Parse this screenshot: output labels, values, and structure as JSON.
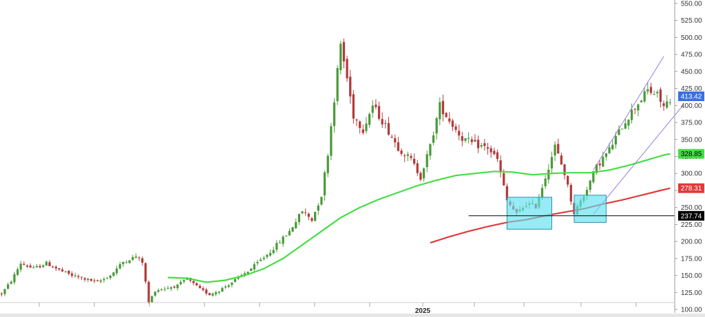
{
  "chart_data": {
    "type": "candlestick",
    "title": "",
    "xlabel": "",
    "ylabel": "",
    "ylim": [
      95,
      555
    ],
    "y_ticks": [
      100.0,
      125.0,
      150.0,
      175.0,
      200.0,
      225.0,
      250.0,
      275.0,
      300.0,
      325.0,
      350.0,
      375.0,
      400.0,
      425.0,
      450.0,
      475.0,
      500.0,
      525.0,
      550.0
    ],
    "x_tick_labels": [
      "2025"
    ],
    "grid": false,
    "colors": {
      "up": "#4a9a3a",
      "down": "#b23a3a",
      "ma_fast": "#44dd44",
      "ma_slow": "#e03a3a",
      "channel": "#9a7ae0",
      "highlight_fill": "#5fe0ee",
      "highlight_stroke": "#2a8fa8",
      "support": "#000000",
      "price_badge": "#3b6fe0"
    },
    "price_waypoints": [
      [
        0,
        123
      ],
      [
        3,
        142
      ],
      [
        6,
        168
      ],
      [
        10,
        160
      ],
      [
        14,
        168
      ],
      [
        18,
        158
      ],
      [
        22,
        150
      ],
      [
        26,
        145
      ],
      [
        30,
        140
      ],
      [
        34,
        150
      ],
      [
        38,
        170
      ],
      [
        42,
        178
      ],
      [
        44,
        170
      ],
      [
        46,
        110
      ],
      [
        48,
        128
      ],
      [
        55,
        135
      ],
      [
        58,
        145
      ],
      [
        62,
        130
      ],
      [
        65,
        122
      ],
      [
        68,
        128
      ],
      [
        72,
        140
      ],
      [
        78,
        160
      ],
      [
        84,
        185
      ],
      [
        90,
        215
      ],
      [
        94,
        245
      ],
      [
        97,
        232
      ],
      [
        100,
        268
      ],
      [
        102,
        330
      ],
      [
        104,
        410
      ],
      [
        106,
        490
      ],
      [
        108,
        440
      ],
      [
        110,
        385
      ],
      [
        113,
        365
      ],
      [
        116,
        400
      ],
      [
        120,
        370
      ],
      [
        124,
        338
      ],
      [
        128,
        320
      ],
      [
        131,
        295
      ],
      [
        134,
        340
      ],
      [
        137,
        400
      ],
      [
        140,
        378
      ],
      [
        144,
        352
      ],
      [
        148,
        342
      ],
      [
        152,
        338
      ],
      [
        155,
        320
      ],
      [
        158,
        260
      ],
      [
        161,
        240
      ],
      [
        164,
        255
      ],
      [
        167,
        252
      ],
      [
        170,
        295
      ],
      [
        173,
        340
      ],
      [
        176,
        300
      ],
      [
        179,
        242
      ],
      [
        182,
        268
      ],
      [
        186,
        310
      ],
      [
        190,
        335
      ],
      [
        194,
        370
      ],
      [
        198,
        398
      ],
      [
        202,
        422
      ],
      [
        205,
        415
      ],
      [
        207,
        398
      ],
      [
        209,
        410
      ]
    ],
    "ma_fast": [
      [
        52,
        147
      ],
      [
        58,
        146
      ],
      [
        64,
        140
      ],
      [
        70,
        143
      ],
      [
        76,
        150
      ],
      [
        82,
        160
      ],
      [
        88,
        175
      ],
      [
        94,
        195
      ],
      [
        100,
        215
      ],
      [
        106,
        235
      ],
      [
        112,
        250
      ],
      [
        118,
        262
      ],
      [
        124,
        272
      ],
      [
        130,
        282
      ],
      [
        136,
        290
      ],
      [
        142,
        297
      ],
      [
        148,
        300
      ],
      [
        154,
        303
      ],
      [
        160,
        302
      ],
      [
        166,
        298
      ],
      [
        172,
        300
      ],
      [
        178,
        301
      ],
      [
        184,
        301
      ],
      [
        190,
        305
      ],
      [
        196,
        312
      ],
      [
        202,
        320
      ],
      [
        207,
        327
      ],
      [
        209,
        328.85
      ]
    ],
    "ma_slow": [
      [
        134,
        198
      ],
      [
        140,
        207
      ],
      [
        146,
        215
      ],
      [
        152,
        222
      ],
      [
        158,
        228
      ],
      [
        164,
        232
      ],
      [
        170,
        238
      ],
      [
        176,
        243
      ],
      [
        182,
        248
      ],
      [
        188,
        255
      ],
      [
        194,
        261
      ],
      [
        200,
        268
      ],
      [
        206,
        275
      ],
      [
        209,
        278.31
      ]
    ],
    "channel": {
      "upper": [
        [
          185,
          305
        ],
        [
          207,
          472
        ]
      ],
      "lower": [
        [
          185,
          240
        ],
        [
          213,
          400
        ]
      ]
    },
    "support_line": {
      "x": [
        146,
        213
      ],
      "value": 237.74
    },
    "highlight_boxes": [
      {
        "x": [
          158,
          172
        ],
        "y": [
          218,
          265
        ]
      },
      {
        "x": [
          179,
          189
        ],
        "y": [
          228,
          268
        ]
      }
    ],
    "price_labels": [
      {
        "value": 413.42,
        "text": "413.42",
        "kind": "price"
      },
      {
        "value": 328.85,
        "text": "328.85",
        "kind": "ma_fast"
      },
      {
        "value": 278.31,
        "text": "278.31",
        "kind": "ma_slow"
      },
      {
        "value": 237.74,
        "text": "237.74",
        "kind": "support"
      }
    ],
    "bars": 210
  }
}
